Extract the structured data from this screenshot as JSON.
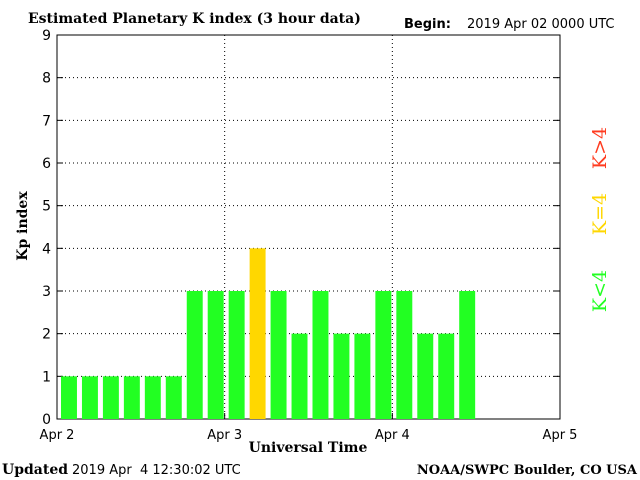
{
  "header": {
    "title": "Estimated Planetary K index (3 hour data)",
    "begin_label": "Begin:",
    "begin_value": "2019 Apr 02 0000 UTC"
  },
  "footer": {
    "updated_label": "Updated",
    "updated_value": "2019 Apr  4 12:30:02 UTC",
    "source": "NOAA/SWPC Boulder, CO USA"
  },
  "legend": {
    "k_greater": "K>4",
    "k_equal": "K=4",
    "k_less": "K<4"
  },
  "colors": {
    "low": "#22ff22",
    "mid": "#ffd700",
    "high": "#ff3b1f",
    "axis": "#000000"
  },
  "chart_data": {
    "type": "bar",
    "title": "Estimated Planetary K index (3 hour data)",
    "xlabel": "Universal Time",
    "ylabel": "Kp index",
    "ylim": [
      0,
      9
    ],
    "yticks": [
      0,
      1,
      2,
      3,
      4,
      5,
      6,
      7,
      8,
      9
    ],
    "x_ticks": [
      "Apr 2",
      "Apr 3",
      "Apr 4",
      "Apr 5"
    ],
    "bin_hours": 3,
    "values": [
      1,
      1,
      1,
      1,
      1,
      1,
      3,
      3,
      3,
      4,
      3,
      2,
      3,
      2,
      2,
      3,
      3,
      2,
      2,
      3
    ],
    "grid": true
  }
}
